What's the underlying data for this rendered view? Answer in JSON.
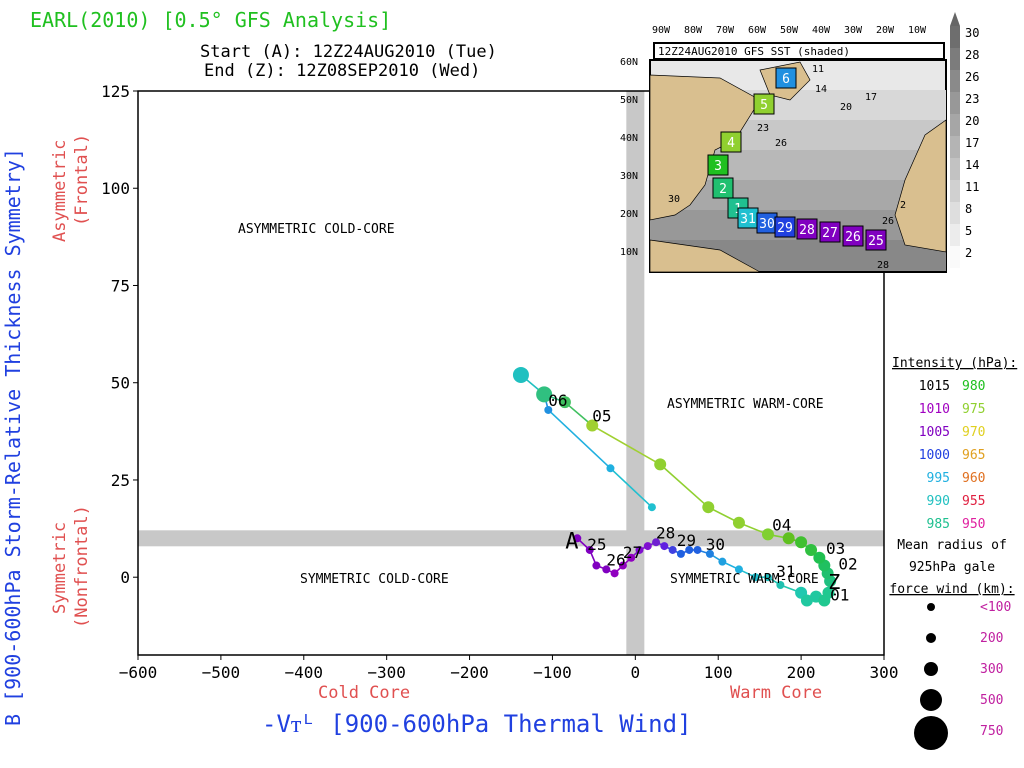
{
  "title": "EARL(2010) [0.5° GFS Analysis]",
  "start_line": "Start (A): 12Z24AUG2010 (Tue)",
  "end_line": "End (Z): 12Z08SEP2010 (Wed)",
  "ylabel": "B [900-600hPa Storm-Relative Thickness Symmetry]",
  "ylabel_top": [
    "Asymmetric",
    "(Frontal)"
  ],
  "ylabel_bottom": [
    "Symmetric",
    "(Nonfrontal)"
  ],
  "xlabel": "-Vᴛᴸ [900-600hPa Thermal Wind]",
  "xlabel_left": "Cold Core",
  "xlabel_right": "Warm Core",
  "quadrants": {
    "asym_cold": "ASYMMETRIC COLD-CORE",
    "asym_warm": "ASYMMETRIC WARM-CORE",
    "sym_cold": "SYMMETRIC COLD-CORE",
    "sym_warm": "SYMMETRIC WARM-CORE"
  },
  "colors": {
    "title": "#20c020",
    "axis_label": "#2040e0",
    "side_label": "#e05050",
    "band": "#c8c8c8"
  },
  "chart_data": {
    "type": "scatter",
    "xlim": [
      -600,
      300
    ],
    "ylim": [
      -20,
      125
    ],
    "xticks": [
      -600,
      -500,
      -400,
      -300,
      -200,
      -100,
      0,
      100,
      200,
      300
    ],
    "yticks": [
      0,
      25,
      50,
      75,
      100,
      125
    ],
    "thresholds": {
      "x": 0,
      "y": 10
    },
    "track": [
      {
        "x": -70,
        "y": 10,
        "c": "#8000c0",
        "s": 2
      },
      {
        "x": -55,
        "y": 7,
        "c": "#8000c0",
        "s": 2
      },
      {
        "x": -47,
        "y": 3,
        "c": "#8000c0",
        "s": 2
      },
      {
        "x": -35,
        "y": 2,
        "c": "#8000c0",
        "s": 2
      },
      {
        "x": -25,
        "y": 1,
        "c": "#9000c0",
        "s": 2
      },
      {
        "x": -15,
        "y": 3,
        "c": "#9000c0",
        "s": 2
      },
      {
        "x": -5,
        "y": 5,
        "c": "#9000c0",
        "s": 2
      },
      {
        "x": 5,
        "y": 7,
        "c": "#8010d0",
        "s": 2
      },
      {
        "x": 15,
        "y": 8,
        "c": "#8010d0",
        "s": 2
      },
      {
        "x": 25,
        "y": 9,
        "c": "#7020d0",
        "s": 2
      },
      {
        "x": 35,
        "y": 8,
        "c": "#6020e0",
        "s": 2
      },
      {
        "x": 45,
        "y": 7,
        "c": "#4040e0",
        "s": 2
      },
      {
        "x": 55,
        "y": 6,
        "c": "#2060e0",
        "s": 2
      },
      {
        "x": 65,
        "y": 7,
        "c": "#2060e0",
        "s": 2
      },
      {
        "x": 75,
        "y": 7,
        "c": "#2060e0",
        "s": 2
      },
      {
        "x": 90,
        "y": 6,
        "c": "#2080e0",
        "s": 2
      },
      {
        "x": 105,
        "y": 4,
        "c": "#20a0e0",
        "s": 2
      },
      {
        "x": 125,
        "y": 2,
        "c": "#20b0e0",
        "s": 2
      },
      {
        "x": 145,
        "y": 0,
        "c": "#20c0d0",
        "s": 2
      },
      {
        "x": 160,
        "y": 0,
        "c": "#20c0c0",
        "s": 2
      },
      {
        "x": 175,
        "y": -2,
        "c": "#20c0b0",
        "s": 2
      },
      {
        "x": 200,
        "y": -4,
        "c": "#20c8b0",
        "s": 3
      },
      {
        "x": 207,
        "y": -6,
        "c": "#20c8a0",
        "s": 3
      },
      {
        "x": 218,
        "y": -5,
        "c": "#20c8a0",
        "s": 3
      },
      {
        "x": 228,
        "y": -6,
        "c": "#20c890",
        "s": 3
      },
      {
        "x": 233,
        "y": -4,
        "c": "#20c890",
        "s": 3
      },
      {
        "x": 235,
        "y": -1,
        "c": "#20c080",
        "s": 3
      },
      {
        "x": 232,
        "y": 1,
        "c": "#20c070",
        "s": 3
      },
      {
        "x": 228,
        "y": 3,
        "c": "#20c060",
        "s": 3
      },
      {
        "x": 222,
        "y": 5,
        "c": "#20c050",
        "s": 3
      },
      {
        "x": 212,
        "y": 7,
        "c": "#30c040",
        "s": 3
      },
      {
        "x": 200,
        "y": 9,
        "c": "#40c030",
        "s": 3
      },
      {
        "x": 185,
        "y": 10,
        "c": "#60c020",
        "s": 3
      },
      {
        "x": 160,
        "y": 11,
        "c": "#80d030",
        "s": 3
      },
      {
        "x": 125,
        "y": 14,
        "c": "#90d030",
        "s": 3
      },
      {
        "x": 88,
        "y": 18,
        "c": "#90d030",
        "s": 3
      },
      {
        "x": 30,
        "y": 29,
        "c": "#90d030",
        "s": 3
      },
      {
        "x": -52,
        "y": 39,
        "c": "#a0d030",
        "s": 3
      },
      {
        "x": -85,
        "y": 45,
        "c": "#40c060",
        "s": 3
      },
      {
        "x": -110,
        "y": 47,
        "c": "#30c080",
        "s": 4
      },
      {
        "x": -138,
        "y": 52,
        "c": "#20c0c0",
        "s": 4
      },
      {
        "x": -105,
        "y": 43,
        "c": "#2090e0",
        "s": 2
      },
      {
        "x": -30,
        "y": 28,
        "c": "#20b0e0",
        "s": 2
      },
      {
        "x": 20,
        "y": 18,
        "c": "#20c0d0",
        "s": 2
      }
    ],
    "labels": [
      {
        "x": -58,
        "y": 7,
        "t": "25"
      },
      {
        "x": -35,
        "y": 3,
        "t": "26"
      },
      {
        "x": -15,
        "y": 5,
        "t": "27"
      },
      {
        "x": 25,
        "y": 10,
        "t": "28"
      },
      {
        "x": 50,
        "y": 8,
        "t": "29"
      },
      {
        "x": 85,
        "y": 7,
        "t": "30"
      },
      {
        "x": 170,
        "y": 0,
        "t": "31"
      },
      {
        "x": 235,
        "y": -6,
        "t": "01"
      },
      {
        "x": 245,
        "y": 2,
        "t": "02"
      },
      {
        "x": 230,
        "y": 6,
        "t": "03"
      },
      {
        "x": 165,
        "y": 12,
        "t": "04"
      },
      {
        "x": -52,
        "y": 40,
        "t": "05"
      },
      {
        "x": -105,
        "y": 44,
        "t": "06"
      }
    ],
    "start_marker": {
      "x": -70,
      "y": 10,
      "t": "A"
    },
    "end_marker": {
      "x": 240,
      "y": -1,
      "t": "Z"
    }
  },
  "intensity_legend": {
    "title": "Intensity (hPa):",
    "rows": [
      {
        "a": "1015",
        "ac": "#000000",
        "b": "980",
        "bc": "#20c020"
      },
      {
        "a": "1010",
        "ac": "#a000c0",
        "b": "975",
        "bc": "#90d030"
      },
      {
        "a": "1005",
        "ac": "#8000c0",
        "b": "970",
        "bc": "#e0d020"
      },
      {
        "a": "1000",
        "ac": "#2040e0",
        "b": "965",
        "bc": "#e0a020"
      },
      {
        "a": "995",
        "ac": "#20b0e0",
        "b": "960",
        "bc": "#e07020"
      },
      {
        "a": "990",
        "ac": "#20c0c0",
        "b": "955",
        "bc": "#e02040"
      },
      {
        "a": "985",
        "ac": "#20c090",
        "b": "950",
        "bc": "#e020a0"
      }
    ],
    "radius_title": [
      "Mean radius of",
      "925hPa gale",
      "force wind (km):"
    ],
    "radius_rows": [
      "<100",
      "200",
      "300",
      "500",
      "750"
    ]
  },
  "inset": {
    "title": "12Z24AUG2010 GFS SST (shaded)",
    "lon_labels": [
      "90W",
      "80W",
      "70W",
      "60W",
      "50W",
      "40W",
      "30W",
      "20W",
      "10W"
    ],
    "lat_labels": [
      "60N",
      "50N",
      "40N",
      "30N",
      "20N",
      "10N"
    ],
    "colorbar_labels": [
      "30",
      "28",
      "26",
      "23",
      "20",
      "17",
      "14",
      "11",
      "8",
      "5",
      "2"
    ],
    "sst_labels": [
      "11",
      "14",
      "20",
      "17",
      "23",
      "26",
      "30",
      "26",
      "28",
      "2"
    ],
    "track_boxes": [
      {
        "t": "6",
        "c": "#2090e0"
      },
      {
        "t": "5",
        "c": "#90d030"
      },
      {
        "t": "4",
        "c": "#90d030"
      },
      {
        "t": "3",
        "c": "#20c020"
      },
      {
        "t": "2",
        "c": "#20c070"
      },
      {
        "t": "1",
        "c": "#20c090"
      },
      {
        "t": "31",
        "c": "#20c0d0"
      },
      {
        "t": "30",
        "c": "#2060e0"
      },
      {
        "t": "29",
        "c": "#2040e0"
      },
      {
        "t": "28",
        "c": "#8000c0"
      },
      {
        "t": "27",
        "c": "#8000c0"
      },
      {
        "t": "26",
        "c": "#8000c0"
      },
      {
        "t": "25",
        "c": "#8000c0"
      }
    ]
  }
}
